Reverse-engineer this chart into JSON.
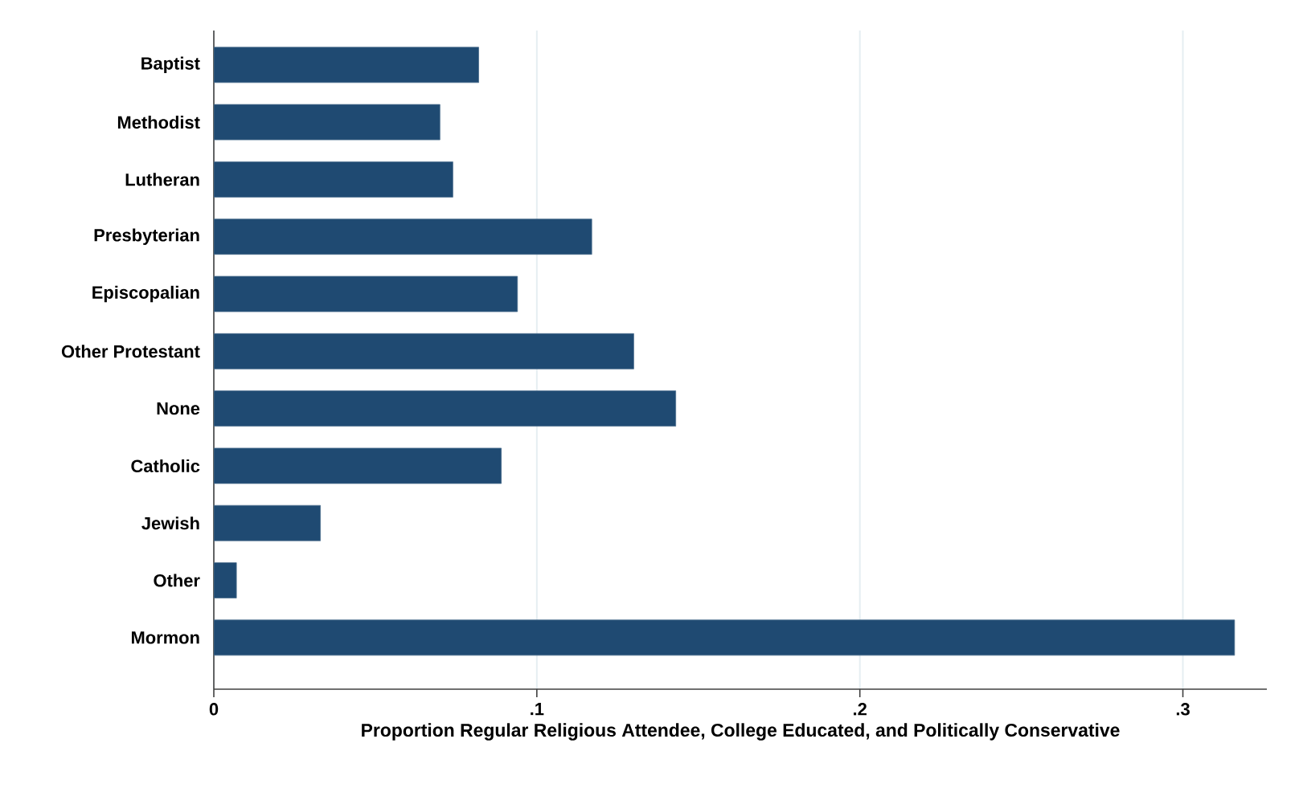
{
  "chart_data": {
    "type": "bar",
    "orientation": "horizontal",
    "xlabel": "Proportion Regular Religious Attendee, College Educated, and Politically Conservative",
    "categories": [
      "Baptist",
      "Methodist",
      "Lutheran",
      "Presbyterian",
      "Episcopalian",
      "Other Protestant",
      "None",
      "Catholic",
      "Jewish",
      "Other",
      "Mormon"
    ],
    "values": [
      0.082,
      0.07,
      0.074,
      0.117,
      0.094,
      0.13,
      0.143,
      0.089,
      0.033,
      0.007,
      0.316
    ],
    "color": "#1f4a72",
    "xlim": [
      0,
      0.326
    ],
    "xticks": [
      0,
      {
        "value": 0.1,
        "label": ".1"
      },
      {
        "value": 0.2,
        "label": ".2"
      },
      {
        "value": 0.3,
        "label": ".3"
      }
    ],
    "grid": "x"
  }
}
